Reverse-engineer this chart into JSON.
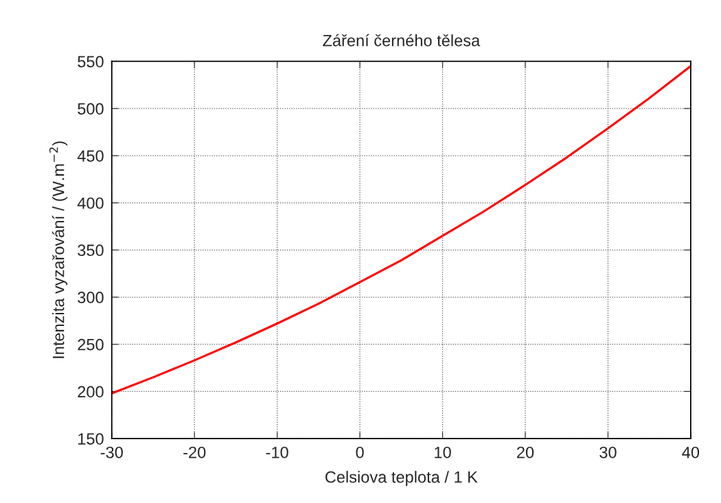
{
  "chart_data": {
    "type": "line",
    "title": "Záření černého tělesa",
    "xlabel": "Celsiova teplota / 1 K",
    "ylabel": "Intenzita vyzařování / (W.m$^{−2}$)",
    "x": [
      -30,
      -25,
      -20,
      -15,
      -10,
      -5,
      0,
      5,
      10,
      15,
      20,
      25,
      30,
      35,
      40
    ],
    "series": [
      {
        "color": "#ff0000",
        "values": [
          198,
          215,
          233,
          252,
          272,
          293,
          316,
          339,
          365,
          391,
          419,
          448,
          479,
          511,
          545
        ]
      }
    ],
    "xlim": [
      -30,
      40
    ],
    "xticks": [
      -30,
      -20,
      -10,
      0,
      10,
      20,
      30,
      40
    ],
    "ylim": [
      150,
      550
    ],
    "yticks": [
      150,
      200,
      250,
      300,
      350,
      400,
      450,
      500,
      550
    ],
    "grid": true,
    "line_style": "solid",
    "marker": "none"
  }
}
